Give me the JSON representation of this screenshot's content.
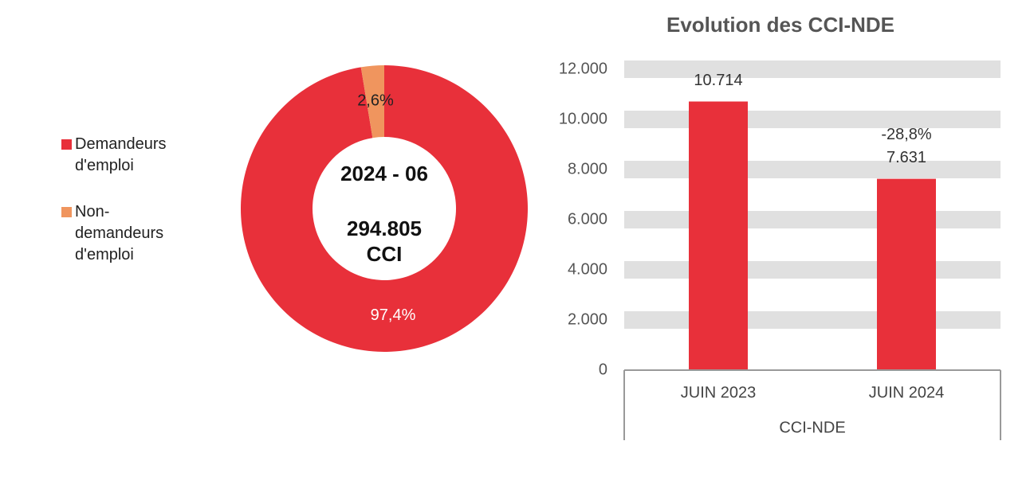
{
  "chart_data": [
    {
      "type": "donut",
      "categories": [
        "Demandeurs d'emploi",
        "Non-demandeurs d'emploi"
      ],
      "values": [
        97.4,
        2.6
      ],
      "value_labels": [
        "97,4%",
        "2,6%"
      ],
      "colors": [
        "#e8303a",
        "#f0955e"
      ],
      "center_text": [
        "2024 - 06",
        "294.805",
        "CCI"
      ],
      "legend": "left"
    },
    {
      "type": "bar",
      "title": "Evolution des CCI-NDE",
      "x_label": "CCI-NDE",
      "categories": [
        "JUIN 2023",
        "JUIN 2024"
      ],
      "values": [
        10714,
        7631
      ],
      "value_labels": [
        "10.714",
        "7.631"
      ],
      "change_label": "-28,8%",
      "color": "#e8303a",
      "ylim": [
        0,
        12000
      ],
      "yticks": [
        0,
        {
          "value": 2000,
          "label": "2.000"
        },
        {
          "value": 4000,
          "label": "4.000"
        },
        {
          "value": 6000,
          "label": "6.000"
        },
        {
          "value": 8000,
          "label": "8.000"
        },
        {
          "value": 10000,
          "label": "10.000"
        },
        {
          "value": 12000,
          "label": "12.000"
        }
      ],
      "grid": true
    }
  ]
}
